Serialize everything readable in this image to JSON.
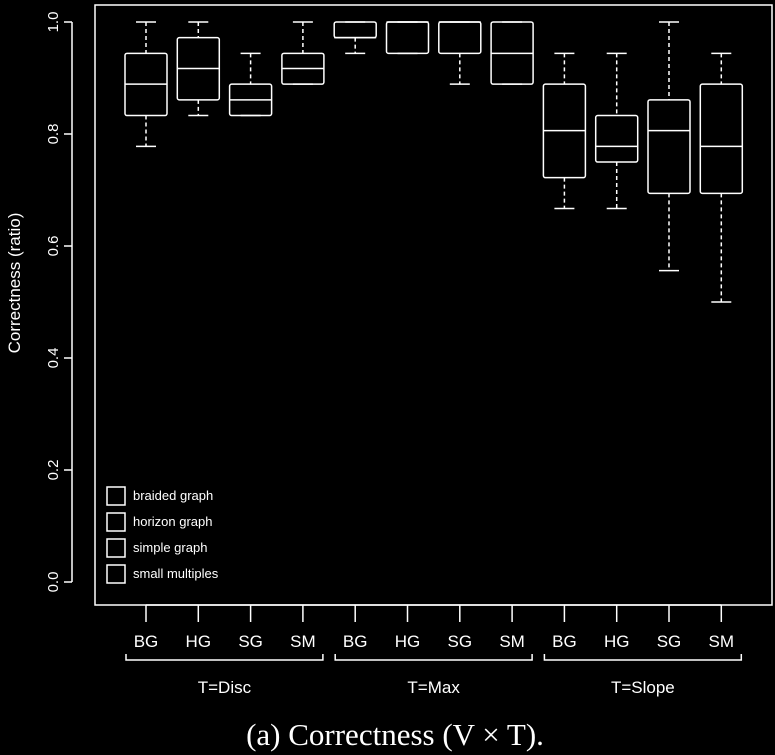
{
  "chart_data": {
    "type": "box",
    "ylabel": "Correctness (ratio)",
    "ylim": [
      0,
      1
    ],
    "yticks": [
      "0.0",
      "0.2",
      "0.4",
      "0.6",
      "0.8",
      "1.0"
    ],
    "ytick_values": [
      0,
      0.2,
      0.4,
      0.6,
      0.8,
      1.0
    ],
    "groups": [
      {
        "label": "T=Disc",
        "boxes": [
          {
            "label": "BG",
            "whisker_low": 0.778,
            "q1": 0.833,
            "median": 0.889,
            "q3": 0.944,
            "whisker_high": 1.0
          },
          {
            "label": "HG",
            "whisker_low": 0.833,
            "q1": 0.861,
            "median": 0.917,
            "q3": 0.972,
            "whisker_high": 1.0
          },
          {
            "label": "SG",
            "whisker_low": 0.833,
            "q1": 0.833,
            "median": 0.861,
            "q3": 0.889,
            "whisker_high": 0.944
          },
          {
            "label": "SM",
            "whisker_low": 0.889,
            "q1": 0.889,
            "median": 0.917,
            "q3": 0.944,
            "whisker_high": 1.0
          }
        ]
      },
      {
        "label": "T=Max",
        "boxes": [
          {
            "label": "BG",
            "whisker_low": 0.944,
            "q1": 0.972,
            "median": 0.972,
            "q3": 1.0,
            "whisker_high": 1.0
          },
          {
            "label": "HG",
            "whisker_low": 0.944,
            "q1": 0.944,
            "median": 1.0,
            "q3": 1.0,
            "whisker_high": 1.0
          },
          {
            "label": "SG",
            "whisker_low": 0.889,
            "q1": 0.944,
            "median": 1.0,
            "q3": 1.0,
            "whisker_high": 1.0
          },
          {
            "label": "SM",
            "whisker_low": 0.889,
            "q1": 0.889,
            "median": 0.944,
            "q3": 1.0,
            "whisker_high": 1.0
          }
        ]
      },
      {
        "label": "T=Slope",
        "boxes": [
          {
            "label": "BG",
            "whisker_low": 0.667,
            "q1": 0.722,
            "median": 0.806,
            "q3": 0.889,
            "whisker_high": 0.944
          },
          {
            "label": "HG",
            "whisker_low": 0.667,
            "q1": 0.75,
            "median": 0.778,
            "q3": 0.833,
            "whisker_high": 0.944
          },
          {
            "label": "SG",
            "whisker_low": 0.556,
            "q1": 0.694,
            "median": 0.806,
            "q3": 0.861,
            "whisker_high": 1.0
          },
          {
            "label": "SM",
            "whisker_low": 0.5,
            "q1": 0.694,
            "median": 0.778,
            "q3": 0.889,
            "whisker_high": 0.944
          }
        ]
      }
    ],
    "legend": {
      "placement": "bottom-left",
      "entries": [
        "braided graph",
        "horizon graph",
        "simple graph",
        "small multiples"
      ]
    },
    "caption": "(a)  Correctness (V × T)."
  }
}
